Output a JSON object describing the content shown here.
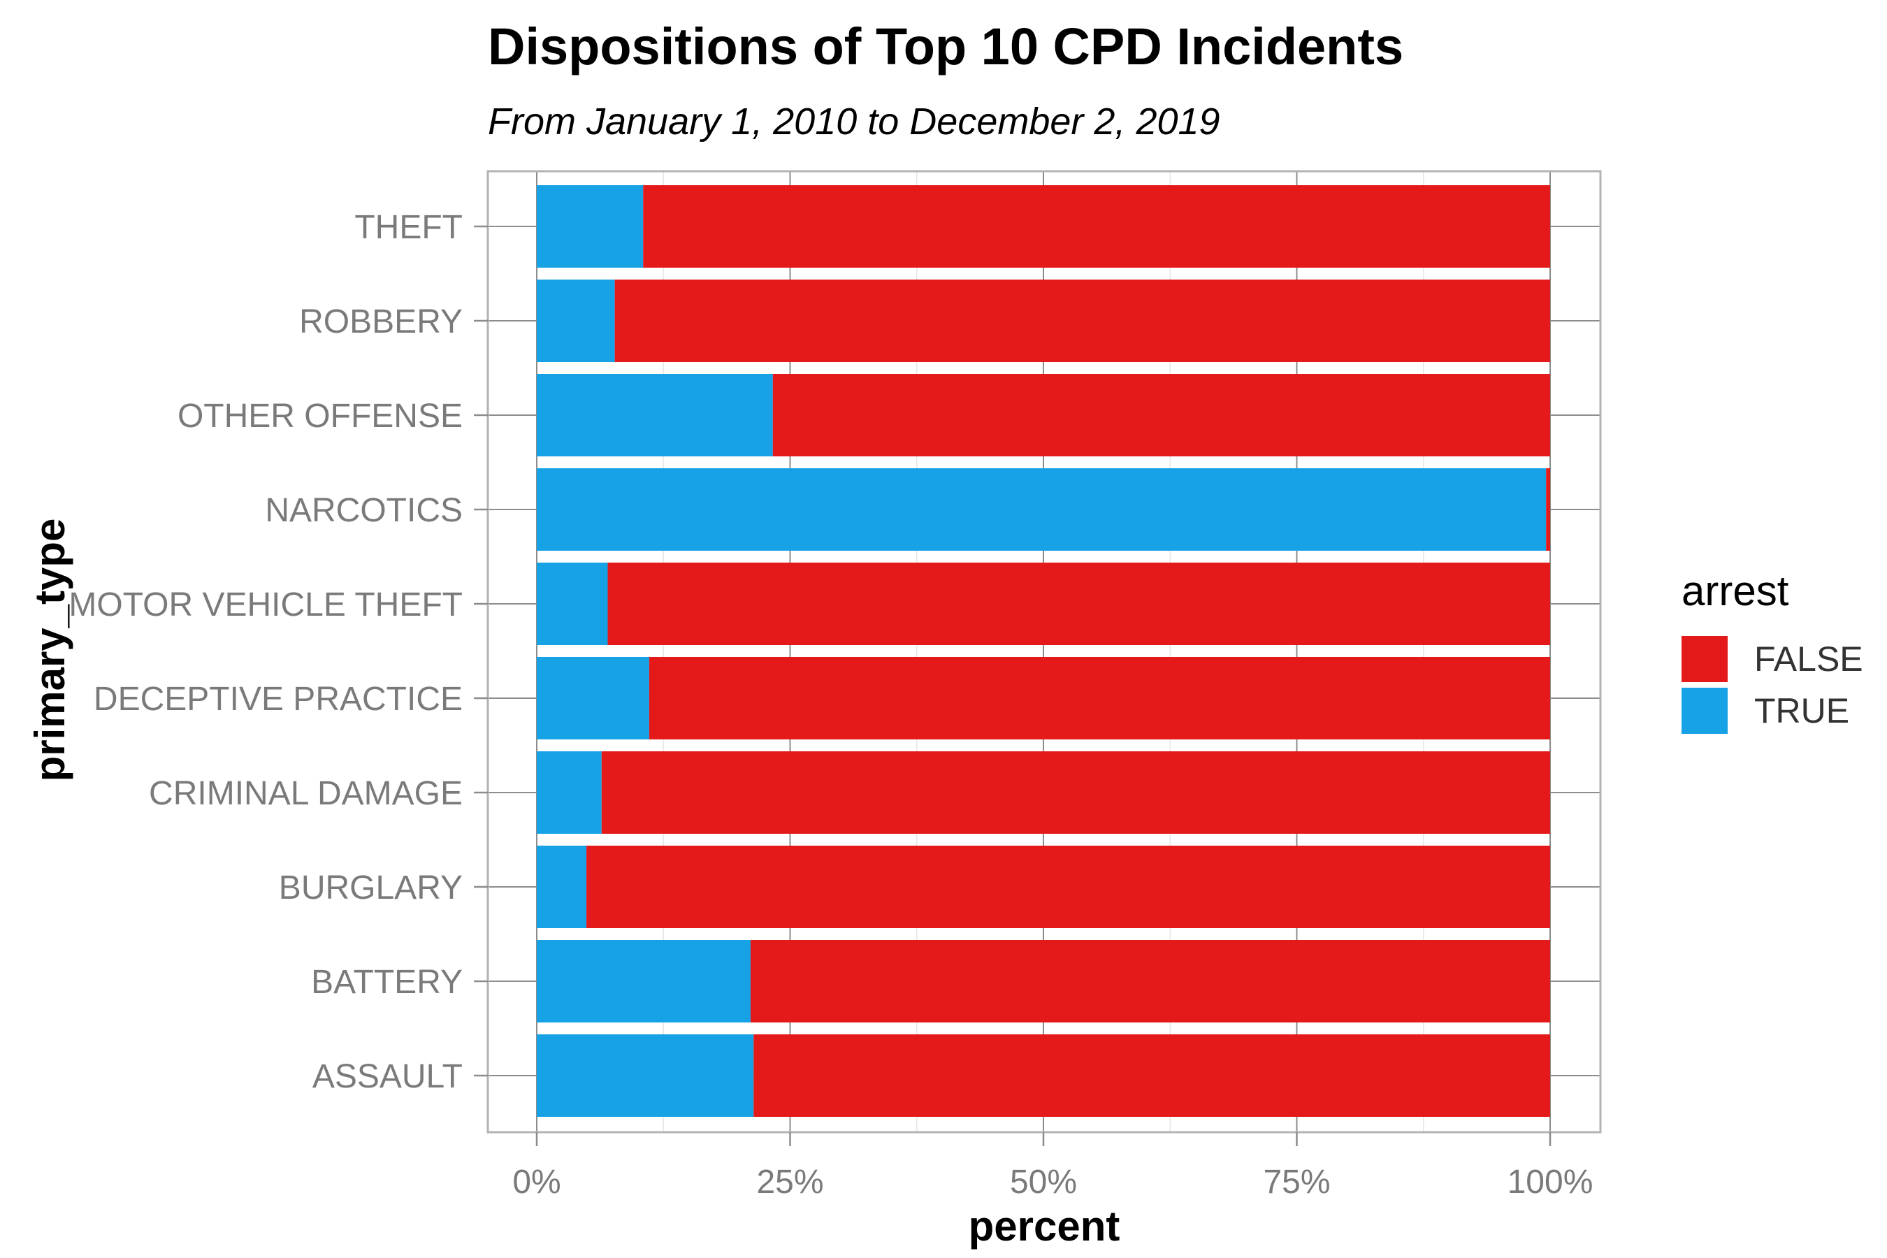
{
  "chart_data": {
    "type": "bar",
    "orientation": "horizontal",
    "stacked": "fill",
    "title": "Dispositions of Top 10 CPD Incidents",
    "subtitle": "From January 1, 2010 to December 2, 2019",
    "xlabel": "percent",
    "ylabel": "primary_type",
    "xlim": [
      0,
      1
    ],
    "x_ticks": [
      "0%",
      "25%",
      "50%",
      "75%",
      "100%"
    ],
    "grid": true,
    "legend": {
      "title": "arrest",
      "position": "right"
    },
    "categories": [
      "THEFT",
      "ROBBERY",
      "OTHER OFFENSE",
      "NARCOTICS",
      "MOTOR VEHICLE THEFT",
      "DECEPTIVE PRACTICE",
      "CRIMINAL DAMAGE",
      "BURGLARY",
      "BATTERY",
      "ASSAULT"
    ],
    "series": [
      {
        "name": "TRUE",
        "color": "#18a2e6",
        "values": [
          0.105,
          0.077,
          0.233,
          0.996,
          0.07,
          0.111,
          0.064,
          0.049,
          0.211,
          0.214
        ]
      },
      {
        "name": "FALSE",
        "color": "#e41a1a",
        "values": [
          0.895,
          0.923,
          0.767,
          0.004,
          0.93,
          0.889,
          0.936,
          0.951,
          0.789,
          0.786
        ]
      }
    ]
  }
}
